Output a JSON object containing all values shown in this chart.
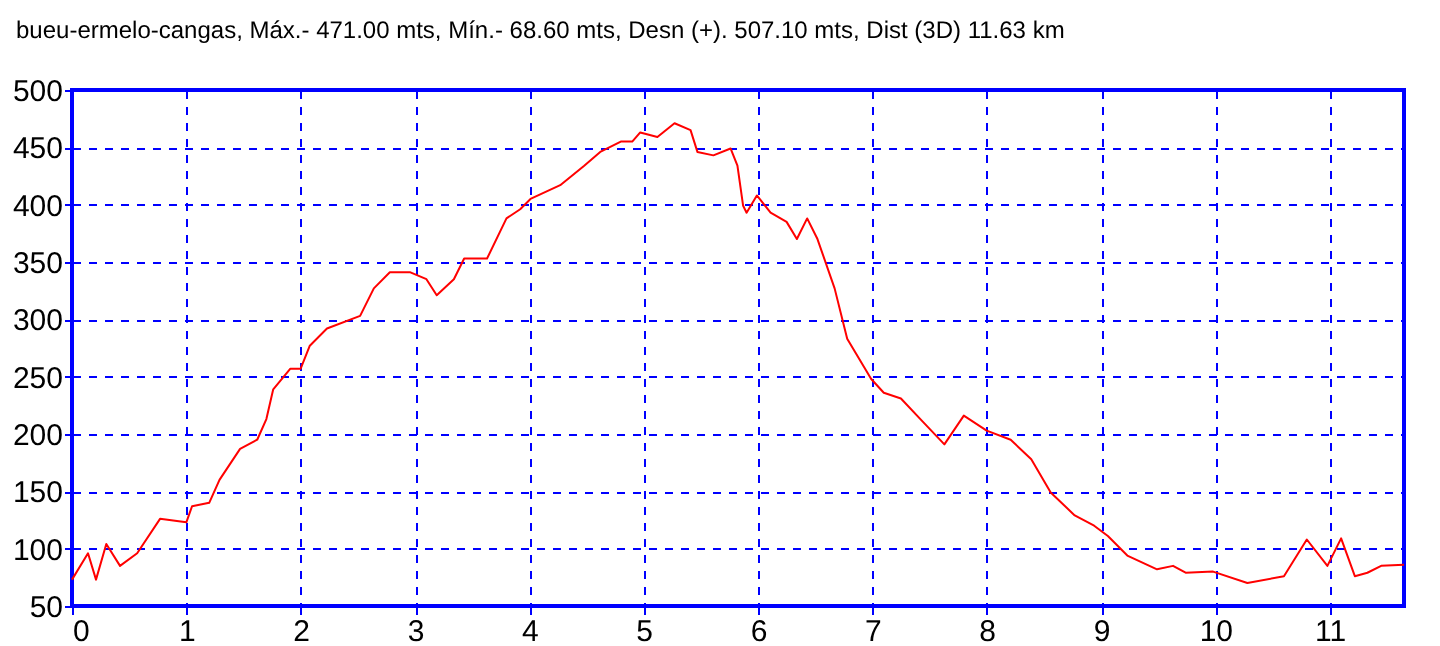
{
  "chart_data": {
    "type": "line",
    "title": "bueu-ermelo-cangas, Máx.- 471.00 mts, Mín.- 68.60 mts, Desn (+). 507.10 mts, Dist (3D) 11.63 km",
    "xlim": [
      0,
      11.65
    ],
    "xticks": [
      0,
      1,
      2,
      3,
      4,
      5,
      6,
      7,
      8,
      9,
      10,
      11
    ],
    "ylim": [
      50,
      500
    ],
    "yticks": [
      50,
      100,
      150,
      200,
      250,
      300,
      350,
      400,
      450,
      500
    ],
    "grid": true,
    "line_style": "solid",
    "series": [
      {
        "color": "#ff0000",
        "x": [
          0,
          0.14,
          0.21,
          0.3,
          0.42,
          0.57,
          0.77,
          1.0,
          1.05,
          1.2,
          1.29,
          1.47,
          1.62,
          1.7,
          1.76,
          1.91,
          2.0,
          2.08,
          2.23,
          2.52,
          2.64,
          2.78,
          2.96,
          3.1,
          3.19,
          3.34,
          3.43,
          3.63,
          3.8,
          3.92,
          4.01,
          4.27,
          4.48,
          4.62,
          4.8,
          4.9,
          4.97,
          5.12,
          5.27,
          5.41,
          5.47,
          5.61,
          5.76,
          5.82,
          5.87,
          5.9,
          5.99,
          6.11,
          6.25,
          6.34,
          6.43,
          6.52,
          6.67,
          6.78,
          6.99,
          7.1,
          7.25,
          7.42,
          7.63,
          7.8,
          8.0,
          8.21,
          8.39,
          8.56,
          8.77,
          8.94,
          9.06,
          9.23,
          9.49,
          9.63,
          9.74,
          9.98,
          10.28,
          10.6,
          10.8,
          10.98,
          11.1,
          11.22,
          11.33,
          11.45,
          11.65
        ],
        "values": [
          73,
          96,
          73,
          104,
          85,
          96,
          126,
          123,
          137,
          140,
          160,
          187,
          195,
          213,
          239,
          257,
          257,
          277,
          292,
          303,
          327,
          341,
          341,
          335,
          321,
          335,
          353,
          353,
          388,
          396,
          405,
          417,
          434,
          446,
          455,
          455,
          463,
          459,
          471,
          465,
          446,
          443,
          449,
          434,
          399,
          393,
          408,
          393,
          385,
          370,
          388,
          370,
          327,
          283,
          248,
          236,
          231,
          213,
          191,
          216,
          203,
          195,
          178,
          149,
          129,
          120,
          111,
          94,
          82,
          85,
          79,
          80,
          70,
          76,
          108,
          85,
          109,
          76,
          79,
          85,
          86
        ]
      }
    ]
  }
}
